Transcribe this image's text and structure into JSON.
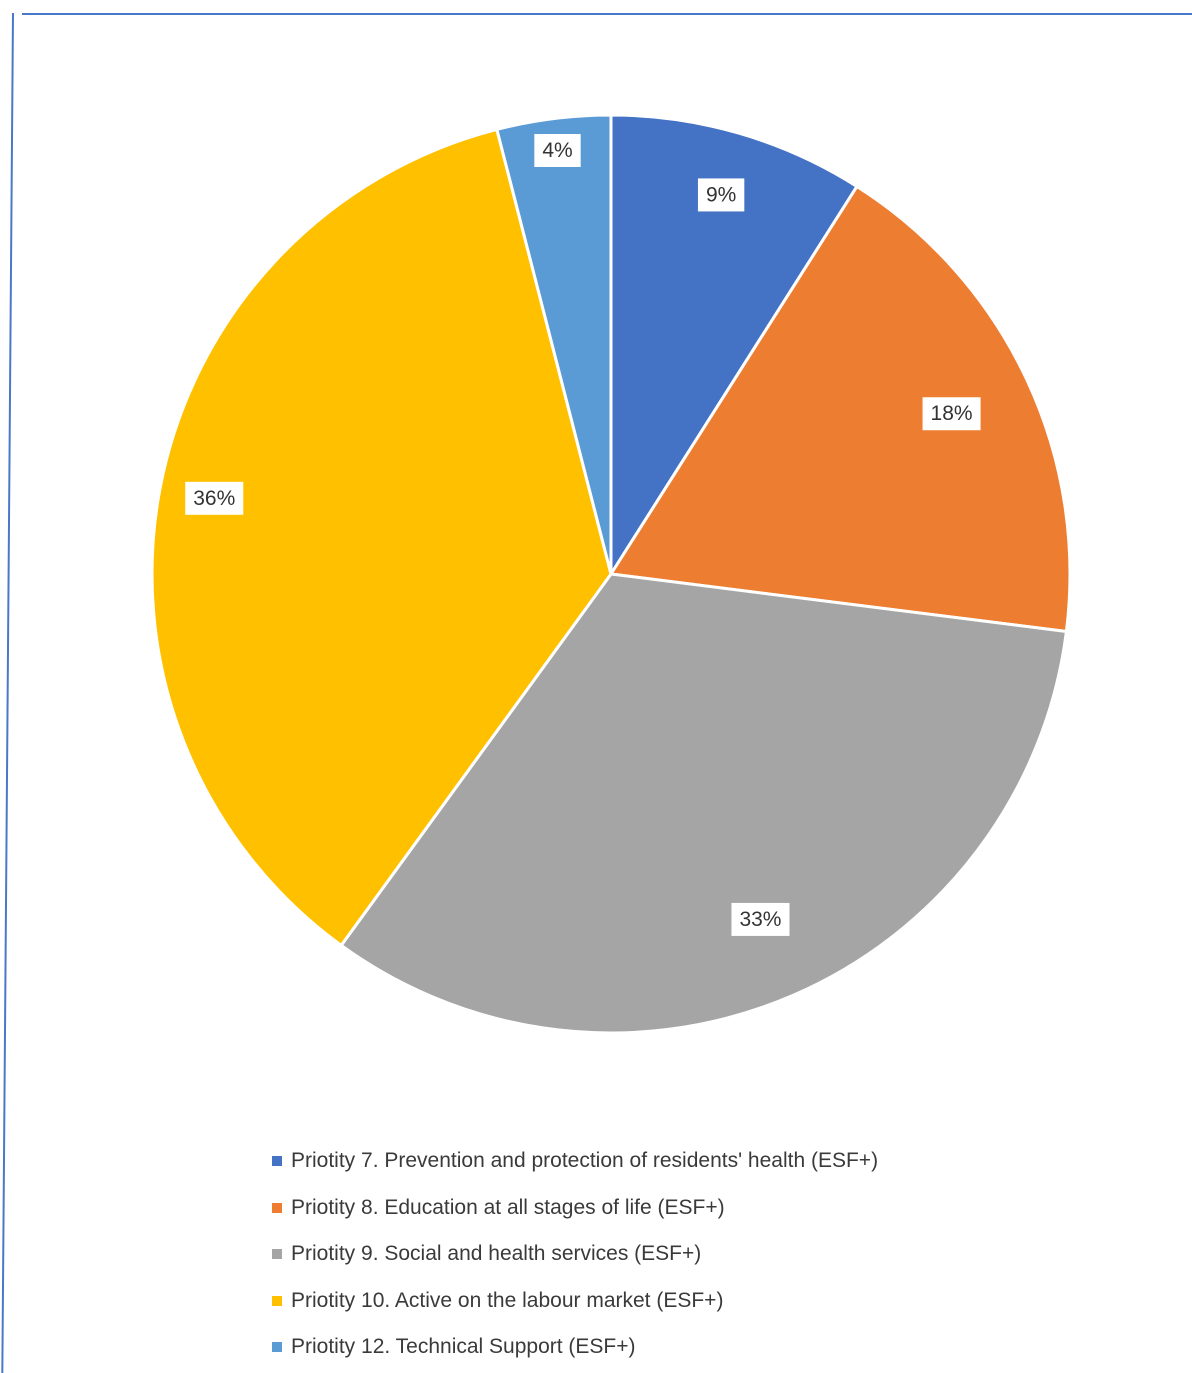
{
  "chart_data": {
    "type": "pie",
    "title": "",
    "slices": [
      {
        "name": "Priotity 7. Prevention and protection of residents' health (ESF+)",
        "value": 9,
        "label": "9%",
        "color": "#4472c4"
      },
      {
        "name": "Priotity 8. Education at all stages of life (ESF+)",
        "value": 18,
        "label": "18%",
        "color": "#ed7d31"
      },
      {
        "name": "Priotity 9. Social and health services (ESF+)",
        "value": 33,
        "label": "33%",
        "color": "#a5a5a5"
      },
      {
        "name": "Priotity 10. Active on the labour market (ESF+)",
        "value": 36,
        "label": "36%",
        "color": "#ffc000"
      },
      {
        "name": "Priotity 12. Technical Support (ESF+)",
        "value": 4,
        "label": "4%",
        "color": "#5b9bd5"
      }
    ],
    "legend_position": "bottom",
    "start_angle": "top, clockwise"
  }
}
